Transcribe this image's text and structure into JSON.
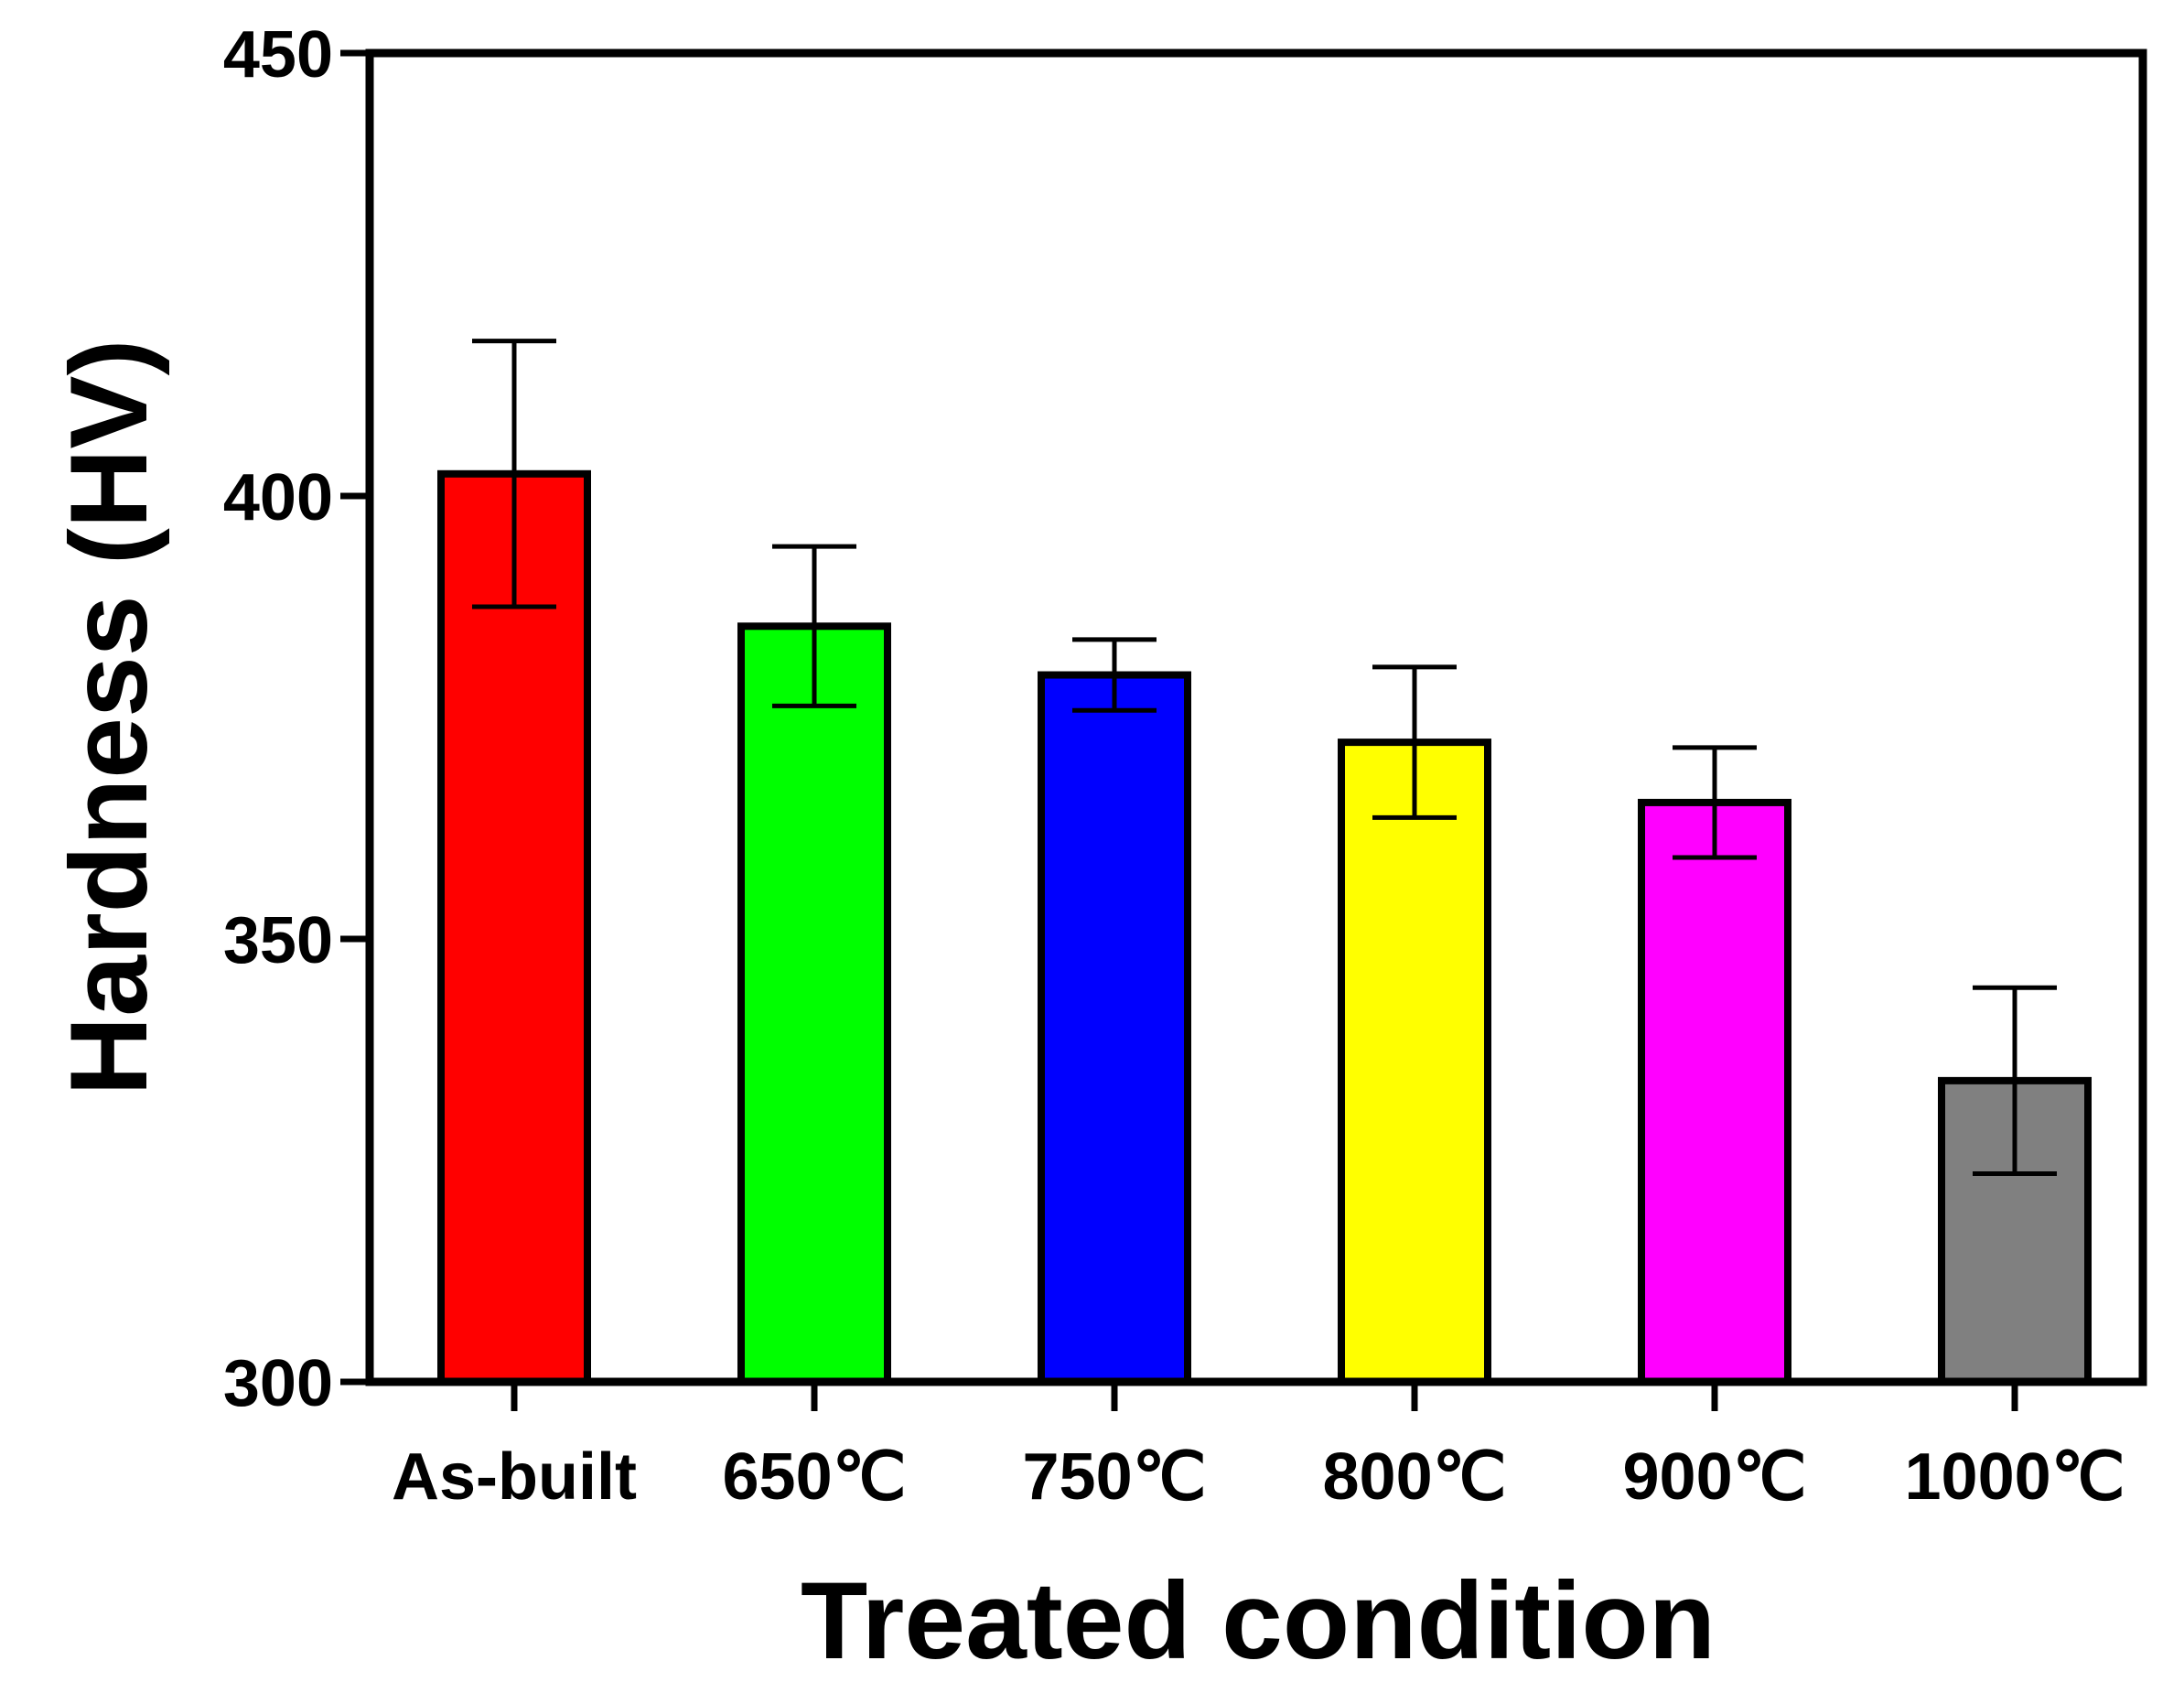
{
  "chart_data": {
    "type": "bar",
    "title": "",
    "xlabel": "Treated condition",
    "ylabel": "Hardness (HV)",
    "ylim": [
      300,
      450
    ],
    "yticks": [
      300,
      350,
      400,
      450
    ],
    "grid": false,
    "categories": [
      "As-built",
      "650℃",
      "750℃",
      "800℃",
      "900℃",
      "1000℃"
    ],
    "values": [
      402.5,
      385.3,
      379.8,
      372.2,
      365.4,
      334.0
    ],
    "errors": [
      15.0,
      9.0,
      4.0,
      8.5,
      6.2,
      10.5
    ],
    "colors": [
      "#ff0000",
      "#00ff00",
      "#0000ff",
      "#ffff00",
      "#ff00ff",
      "#808080"
    ]
  }
}
